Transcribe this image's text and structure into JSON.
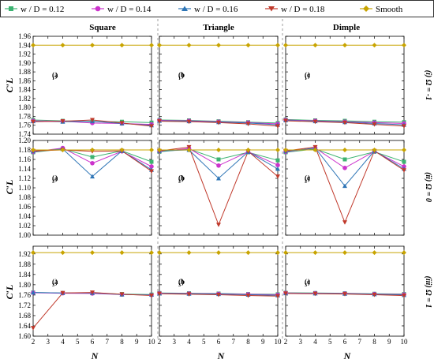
{
  "chart_data": {
    "type": "line",
    "legend": {
      "placement": "top",
      "entries": [
        {
          "label": "w / D = 0.12",
          "color": "#3cb371",
          "marker": "square"
        },
        {
          "label": "w / D = 0.14",
          "color": "#cc33cc",
          "marker": "circle"
        },
        {
          "label": "w / D = 0.16",
          "color": "#2e75b6",
          "marker": "triangle-up"
        },
        {
          "label": "w / D = 0.18",
          "color": "#c0392b",
          "marker": "triangle-down"
        },
        {
          "label": "Smooth",
          "color": "#c8a400",
          "marker": "diamond"
        }
      ]
    },
    "columns": [
      "Square",
      "Triangle",
      "Dimple"
    ],
    "rows": [
      {
        "label": "(i) Ω = -1",
        "ylim": [
          1.74,
          1.96
        ],
        "yticks": [
          "1.74",
          "1.76",
          "1.78",
          "1.80",
          "1.82",
          "1.84",
          "1.86",
          "1.88",
          "1.90",
          "1.92",
          "1.94",
          "1.96"
        ]
      },
      {
        "label": "(ii) Ω = 0",
        "ylim": [
          1.0,
          1.2
        ],
        "yticks": [
          "1.00",
          "1.02",
          "1.04",
          "1.06",
          "1.08",
          "1.10",
          "1.12",
          "1.14",
          "1.16",
          "1.18",
          "1.20"
        ]
      },
      {
        "label": "(iii) Ω = 1",
        "ylim": [
          1.6,
          1.95
        ],
        "yticks": [
          "1.60",
          "1.64",
          "1.68",
          "1.72",
          "1.76",
          "1.80",
          "1.84",
          "1.88",
          "1.92"
        ]
      }
    ],
    "x": [
      2,
      4,
      6,
      8,
      10
    ],
    "xlim": [
      2,
      10
    ],
    "xticks": [
      "2",
      "3",
      "4",
      "5",
      "6",
      "7",
      "8",
      "9",
      "10"
    ],
    "xlabel": "N",
    "ylabel": "C′L",
    "panels": [
      {
        "row": 0,
        "col": 0,
        "label_main": "(a",
        "label_sub": "1",
        "series": [
          [
            1.772,
            1.77,
            1.768,
            1.768,
            1.766
          ],
          [
            1.77,
            1.769,
            1.765,
            1.764,
            1.762
          ],
          [
            1.769,
            1.768,
            1.769,
            1.764,
            1.76
          ],
          [
            1.768,
            1.769,
            1.772,
            1.765,
            1.758
          ],
          [
            1.94,
            1.94,
            1.94,
            1.94,
            1.94
          ]
        ]
      },
      {
        "row": 0,
        "col": 1,
        "label_main": "(b",
        "label_sub": "1",
        "series": [
          [
            1.772,
            1.771,
            1.769,
            1.767,
            1.765
          ],
          [
            1.771,
            1.77,
            1.768,
            1.766,
            1.763
          ],
          [
            1.77,
            1.769,
            1.767,
            1.765,
            1.761
          ],
          [
            1.769,
            1.768,
            1.766,
            1.763,
            1.758
          ],
          [
            1.94,
            1.94,
            1.94,
            1.94,
            1.94
          ]
        ]
      },
      {
        "row": 0,
        "col": 2,
        "label_main": "(c",
        "label_sub": "1",
        "series": [
          [
            1.773,
            1.771,
            1.77,
            1.768,
            1.767
          ],
          [
            1.772,
            1.77,
            1.768,
            1.766,
            1.764
          ],
          [
            1.771,
            1.769,
            1.767,
            1.764,
            1.761
          ],
          [
            1.77,
            1.768,
            1.766,
            1.762,
            1.758
          ],
          [
            1.94,
            1.94,
            1.94,
            1.94,
            1.94
          ]
        ]
      },
      {
        "row": 1,
        "col": 0,
        "label_main": "(a",
        "label_sub": "2",
        "series": [
          [
            1.175,
            1.182,
            1.165,
            1.178,
            1.155
          ],
          [
            1.176,
            1.184,
            1.152,
            1.177,
            1.145
          ],
          [
            1.177,
            1.182,
            1.124,
            1.178,
            1.138
          ],
          [
            1.178,
            1.18,
            1.177,
            1.178,
            1.135
          ],
          [
            1.18,
            1.18,
            1.18,
            1.18,
            1.18
          ]
        ]
      },
      {
        "row": 1,
        "col": 1,
        "label_main": "(b",
        "label_sub": "2",
        "series": [
          [
            1.176,
            1.182,
            1.16,
            1.175,
            1.158
          ],
          [
            1.177,
            1.183,
            1.147,
            1.176,
            1.148
          ],
          [
            1.178,
            1.18,
            1.12,
            1.176,
            1.14
          ],
          [
            1.178,
            1.186,
            1.022,
            1.177,
            1.124
          ],
          [
            1.18,
            1.18,
            1.18,
            1.18,
            1.18
          ]
        ]
      },
      {
        "row": 1,
        "col": 2,
        "label_main": "(c",
        "label_sub": "2",
        "series": [
          [
            1.175,
            1.182,
            1.16,
            1.176,
            1.155
          ],
          [
            1.176,
            1.184,
            1.142,
            1.177,
            1.145
          ],
          [
            1.177,
            1.184,
            1.104,
            1.178,
            1.14
          ],
          [
            1.178,
            1.186,
            1.027,
            1.178,
            1.137
          ],
          [
            1.18,
            1.18,
            1.18,
            1.18,
            1.18
          ]
        ]
      },
      {
        "row": 2,
        "col": 0,
        "label_main": "(a",
        "label_sub": "3",
        "series": [
          [
            1.77,
            1.768,
            1.767,
            1.764,
            1.762
          ],
          [
            1.769,
            1.767,
            1.766,
            1.762,
            1.76
          ],
          [
            1.77,
            1.768,
            1.768,
            1.762,
            1.761
          ],
          [
            1.632,
            1.768,
            1.77,
            1.763,
            1.758
          ],
          [
            1.925,
            1.925,
            1.925,
            1.925,
            1.925
          ]
        ]
      },
      {
        "row": 2,
        "col": 1,
        "label_main": "(b",
        "label_sub": "3",
        "series": [
          [
            1.768,
            1.767,
            1.766,
            1.764,
            1.763
          ],
          [
            1.767,
            1.766,
            1.765,
            1.763,
            1.761
          ],
          [
            1.766,
            1.765,
            1.764,
            1.761,
            1.759
          ],
          [
            1.765,
            1.763,
            1.761,
            1.758,
            1.756
          ],
          [
            1.925,
            1.925,
            1.925,
            1.925,
            1.925
          ]
        ]
      },
      {
        "row": 2,
        "col": 2,
        "label_main": "(c",
        "label_sub": "3",
        "series": [
          [
            1.769,
            1.768,
            1.767,
            1.765,
            1.764
          ],
          [
            1.768,
            1.767,
            1.766,
            1.764,
            1.762
          ],
          [
            1.767,
            1.766,
            1.765,
            1.763,
            1.76
          ],
          [
            1.766,
            1.765,
            1.764,
            1.761,
            1.758
          ],
          [
            1.925,
            1.925,
            1.925,
            1.925,
            1.925
          ]
        ]
      }
    ]
  }
}
